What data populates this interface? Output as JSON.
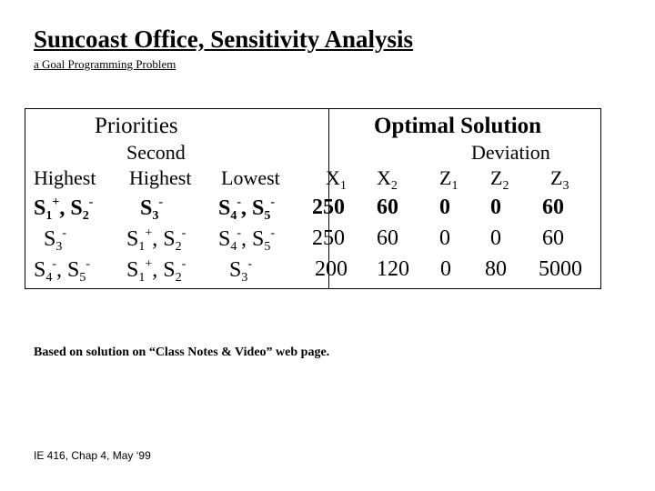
{
  "slide": {
    "title": "Suncoast Office, Sensitivity Analysis",
    "subtitle": "a Goal Programming Problem",
    "note": "Based on solution on “Class Notes & Video” web page.",
    "footer": "IE 416, Chap 4, May ‘99"
  },
  "table": {
    "priorities_header": "Priorities",
    "solution_header": "Optimal Solution",
    "col_second_top": "Second",
    "col_highest": "Highest",
    "col_second": "Highest",
    "col_lowest": "Lowest",
    "deviation_header": "Deviation",
    "x1": {
      "base": "X",
      "sub": "1"
    },
    "x2": {
      "base": "X",
      "sub": "2"
    },
    "z1": {
      "base": "Z",
      "sub": "1"
    },
    "z2": {
      "base": "Z",
      "sub": "2"
    },
    "z3": {
      "base": "Z",
      "sub": "3"
    },
    "rows": [
      {
        "highest": {
          "a": "S",
          "a_sub": "1",
          "a_sup": "+",
          "sep": ", ",
          "b": "S",
          "b_sub": "2",
          "b_sup": "-"
        },
        "second": {
          "a": "S",
          "a_sub": "3",
          "a_sup": "-"
        },
        "lowest": {
          "a": "S",
          "a_sub": "4",
          "a_sup": "-",
          "sep": ", ",
          "b": "S",
          "b_sub": "5",
          "b_sup": "-"
        },
        "x1": "250",
        "x2": "60",
        "z1": "0",
        "z2": "0",
        "z3": "60"
      },
      {
        "highest": {
          "a": "S",
          "a_sub": "3",
          "a_sup": "-"
        },
        "second": {
          "a": "S",
          "a_sub": "1",
          "a_sup": "+",
          "sep": ", ",
          "b": "S",
          "b_sub": "2",
          "b_sup": "-"
        },
        "lowest": {
          "a": "S",
          "a_sub": "4",
          "a_sup": "-",
          "sep": ", ",
          "b": "S",
          "b_sub": "5",
          "b_sup": "-"
        },
        "x1": "250",
        "x2": "60",
        "z1": "0",
        "z2": "0",
        "z3": "60"
      },
      {
        "highest": {
          "a": "S",
          "a_sub": "4",
          "a_sup": "-",
          "sep": ", ",
          "b": "S",
          "b_sub": "5",
          "b_sup": "-"
        },
        "second": {
          "a": "S",
          "a_sub": "1",
          "a_sup": "+",
          "sep": ", ",
          "b": "S",
          "b_sub": "2",
          "b_sup": "-"
        },
        "lowest": {
          "a": "S",
          "a_sub": "3",
          "a_sup": "-"
        },
        "x1": "200",
        "x2": "120",
        "z1": "0",
        "z2": "80",
        "z3": "5000"
      }
    ]
  }
}
